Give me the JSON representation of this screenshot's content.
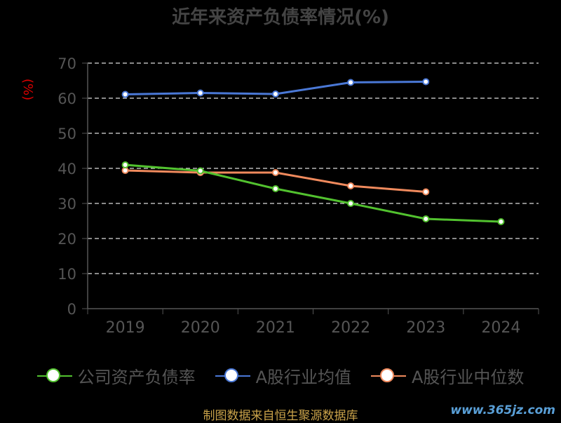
{
  "title": "近年来资产负债率情况(%)",
  "source": "制图数据来自恒生聚源数据库",
  "watermark": "www.365jz.com",
  "chart_data": {
    "type": "line",
    "title": "近年来资产负债率情况(%)",
    "ylabel": "(%)",
    "xlabel": "",
    "categories": [
      "2019",
      "2020",
      "2021",
      "2022",
      "2023",
      "2024"
    ],
    "ylim": [
      0,
      70
    ],
    "yticks": [
      0,
      10,
      20,
      30,
      40,
      50,
      60,
      70
    ],
    "grid": true,
    "legend_position": "bottom",
    "series": [
      {
        "name": "公司资产负债率",
        "color": "#52c22f",
        "values": [
          41.0,
          39.3,
          34.2,
          30.0,
          25.6,
          24.8
        ]
      },
      {
        "name": "A股行业均值",
        "color": "#4a78d6",
        "values": [
          61.1,
          61.5,
          61.2,
          64.5,
          64.7,
          null
        ]
      },
      {
        "name": "A股行业中位数",
        "color": "#f08a5d",
        "values": [
          39.4,
          38.8,
          38.8,
          35.0,
          33.3,
          null
        ]
      }
    ]
  }
}
